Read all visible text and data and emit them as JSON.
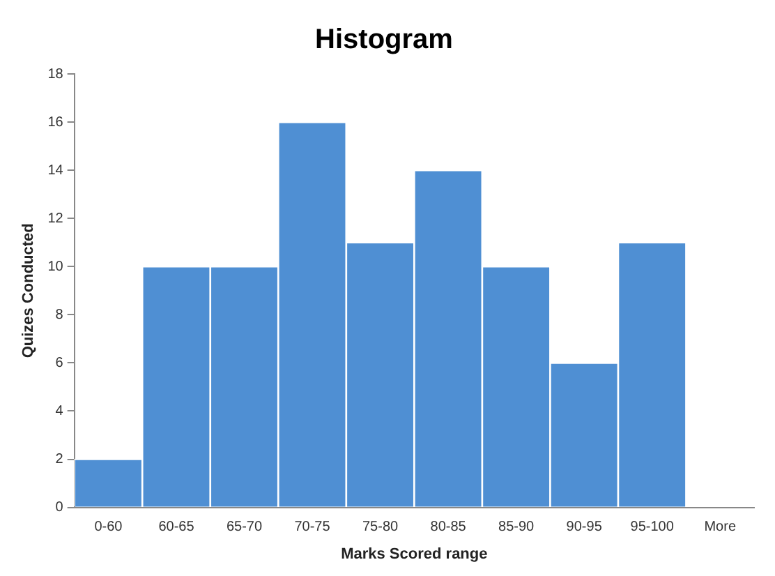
{
  "chart_data": {
    "type": "bar",
    "title": "Histogram",
    "xlabel": "Marks Scored range",
    "ylabel": "Quizes Conducted",
    "categories": [
      "0-60",
      "60-65",
      "65-70",
      "70-75",
      "75-80",
      "80-85",
      "85-90",
      "90-95",
      "95-100",
      "More"
    ],
    "values": [
      2,
      10,
      10,
      16,
      11,
      14,
      10,
      6,
      11,
      0
    ],
    "color": "#4f8fd3",
    "ylim": [
      0,
      18
    ],
    "yticks": [
      0,
      2,
      4,
      6,
      8,
      10,
      12,
      14,
      16,
      18
    ],
    "grid": false,
    "legend": false
  }
}
